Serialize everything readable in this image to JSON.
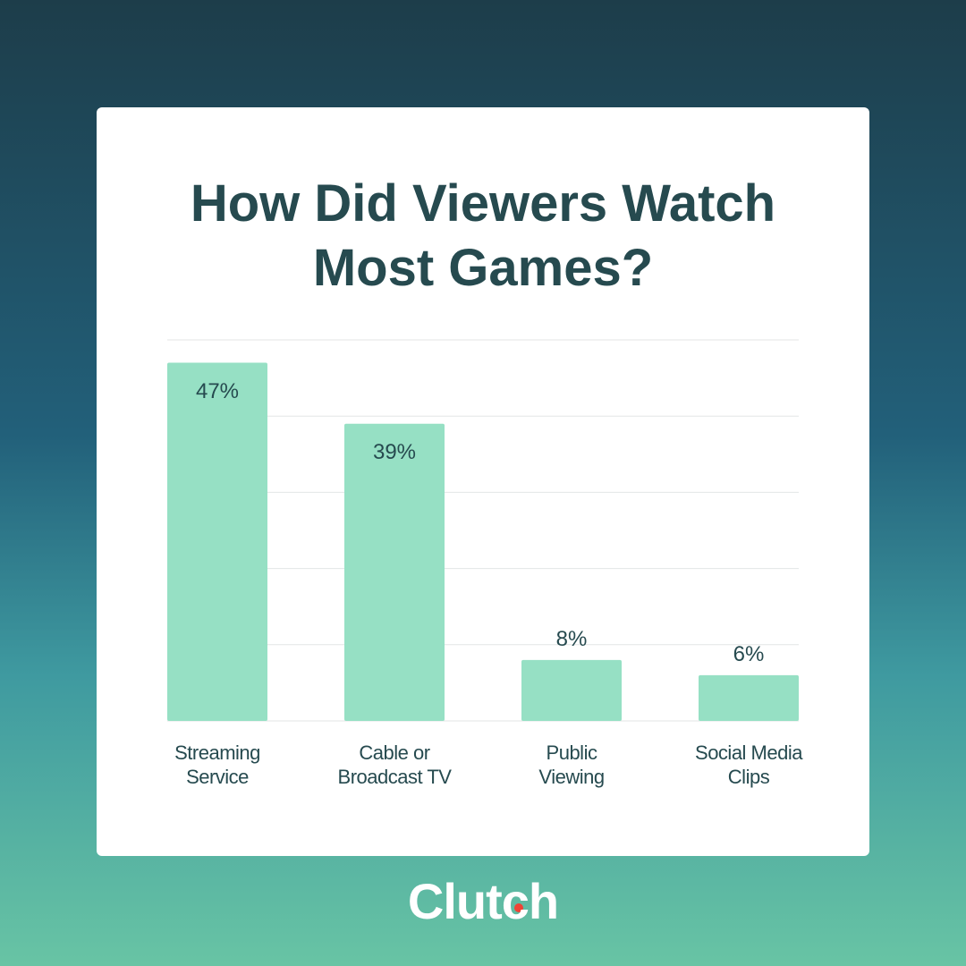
{
  "chart_data": {
    "type": "bar",
    "title": "How Did Viewers Watch Most Games?",
    "categories": [
      "Streaming Service",
      "Cable or Broadcast TV",
      "Public Viewing",
      "Social Media Clips"
    ],
    "values": [
      47,
      39,
      8,
      6
    ],
    "value_labels": [
      "47%",
      "39%",
      "8%",
      "6%"
    ],
    "color": "#96e0c4",
    "ylim": [
      0,
      50
    ],
    "yticks": [
      0,
      10,
      20,
      30,
      40,
      50
    ],
    "grid": true
  },
  "branding": {
    "logo": "Clutch"
  }
}
